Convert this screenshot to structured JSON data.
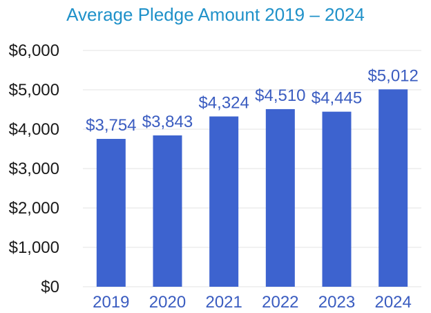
{
  "chart_data": {
    "type": "bar",
    "title": "Average Pledge Amount 2019 – 2024",
    "categories": [
      "2019",
      "2020",
      "2021",
      "2022",
      "2023",
      "2024"
    ],
    "values": [
      3754,
      3843,
      4324,
      4510,
      4445,
      5012
    ],
    "data_labels": [
      "$3,754",
      "$3,843",
      "$4,324",
      "$4,510",
      "$4,445",
      "$5,012"
    ],
    "ylim": [
      0,
      6000
    ],
    "yticks": [
      0,
      1000,
      2000,
      3000,
      4000,
      5000,
      6000
    ],
    "ytick_labels": [
      "$0",
      "$1,000",
      "$2,000",
      "$3,000",
      "$4,000",
      "$5,000",
      "$6,000"
    ],
    "xlabel": "",
    "ylabel": "",
    "grid": true,
    "bar_color": "#3d63cf",
    "label_color": "#3a5cc0",
    "title_color": "#1f91c9",
    "grid_color": "#e3e3e3"
  }
}
